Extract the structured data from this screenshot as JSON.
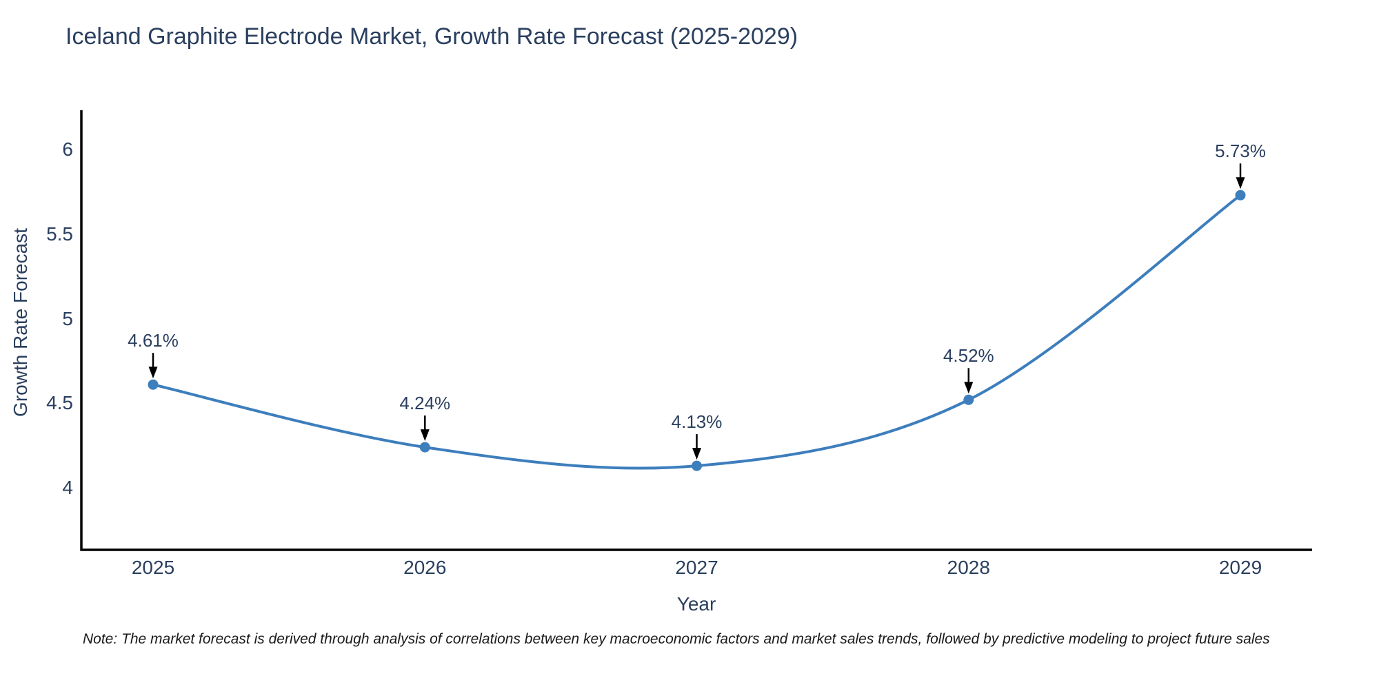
{
  "chart_data": {
    "type": "line",
    "title": "Iceland Graphite Electrode Market, Growth Rate Forecast (2025-2029)",
    "xlabel": "Year",
    "ylabel": "Growth Rate Forecast",
    "x": [
      "2025",
      "2026",
      "2027",
      "2028",
      "2029"
    ],
    "values": [
      4.61,
      4.24,
      4.13,
      4.52,
      5.73
    ],
    "point_labels": [
      "4.61%",
      "4.24%",
      "4.13%",
      "4.52%",
      "5.73%"
    ],
    "yticks": [
      "4",
      "4.5",
      "5",
      "5.5",
      "6"
    ],
    "ytick_values": [
      4,
      4.5,
      5,
      5.5,
      6
    ],
    "ylim": [
      3.64,
      6.26
    ],
    "line_shape": "spline",
    "grid": false,
    "legend": false,
    "note": "Note: The market forecast is derived through analysis of correlations between key macroeconomic factors and market sales trends, followed by predictive modeling to project future sales",
    "colors": {
      "line": "#3d7ebd",
      "marker": "#3d7ebd",
      "axis": "#000000",
      "text": "#2a3f5f",
      "annotation_arrow": "#000000",
      "note_text": "#1a1a1a",
      "background": "#ffffff"
    }
  }
}
